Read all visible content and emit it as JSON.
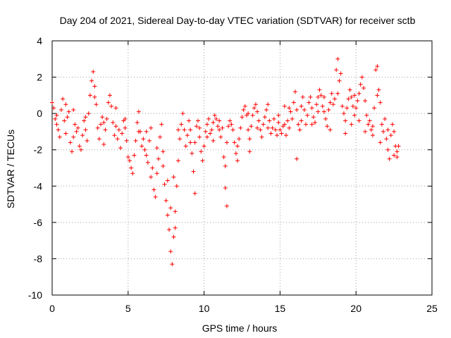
{
  "chart_data": {
    "type": "scatter",
    "title": "Day 204 of 2021, Sidereal Day-to-day VTEC variation (SDTVAR) for receiver sctb",
    "xlabel": "GPS time / hours",
    "ylabel": "SDTVAR / TECUs",
    "xlim": [
      0,
      25
    ],
    "ylim": [
      -10,
      4
    ],
    "xticks": [
      0,
      5,
      10,
      15,
      20,
      25
    ],
    "yticks": [
      -10,
      -8,
      -6,
      -4,
      -2,
      0,
      2,
      4
    ],
    "grid": true,
    "marker": "+",
    "color": "#ff0000",
    "series": [
      {
        "name": "SDTVAR",
        "points": [
          [
            0.0,
            0.6
          ],
          [
            0.1,
            0.3
          ],
          [
            0.2,
            -0.3
          ],
          [
            0.3,
            -0.6
          ],
          [
            0.4,
            -0.9
          ],
          [
            0.5,
            -1.3
          ],
          [
            0.6,
            0.2
          ],
          [
            0.7,
            0.8
          ],
          [
            0.8,
            -0.4
          ],
          [
            0.9,
            -1.1
          ],
          [
            1.0,
            -0.2
          ],
          [
            1.1,
            0.1
          ],
          [
            1.2,
            -1.6
          ],
          [
            1.3,
            -2.1
          ],
          [
            1.4,
            -1.3
          ],
          [
            1.5,
            -0.6
          ],
          [
            1.6,
            -1.0
          ],
          [
            1.7,
            -0.8
          ],
          [
            1.8,
            -1.8
          ],
          [
            1.9,
            -2.0
          ],
          [
            2.0,
            -1.2
          ],
          [
            2.1,
            -0.4
          ],
          [
            2.2,
            -0.9
          ],
          [
            2.3,
            -1.5
          ],
          [
            2.4,
            0.0
          ],
          [
            2.5,
            1.0
          ],
          [
            2.6,
            1.8
          ],
          [
            2.7,
            2.3
          ],
          [
            2.8,
            1.5
          ],
          [
            2.9,
            0.5
          ],
          [
            3.0,
            -0.8
          ],
          [
            3.1,
            -1.4
          ],
          [
            3.2,
            -0.6
          ],
          [
            3.3,
            -0.2
          ],
          [
            3.4,
            -1.7
          ],
          [
            3.5,
            -0.9
          ],
          [
            3.6,
            -0.3
          ],
          [
            3.7,
            0.6
          ],
          [
            3.8,
            1.0
          ],
          [
            3.9,
            0.4
          ],
          [
            4.0,
            -0.5
          ],
          [
            4.1,
            -1.2
          ],
          [
            4.2,
            -0.7
          ],
          [
            4.3,
            -1.4
          ],
          [
            4.4,
            -0.9
          ],
          [
            4.5,
            -1.9
          ],
          [
            4.6,
            -1.1
          ],
          [
            4.7,
            -0.4
          ],
          [
            4.8,
            -0.8
          ],
          [
            4.9,
            -1.5
          ],
          [
            5.0,
            -2.4
          ],
          [
            5.1,
            -2.6
          ],
          [
            5.2,
            -3.0
          ],
          [
            5.3,
            -3.3
          ],
          [
            5.4,
            -2.3
          ],
          [
            5.5,
            -1.5
          ],
          [
            5.6,
            -0.5
          ],
          [
            5.7,
            0.1
          ],
          [
            5.8,
            -1.0
          ],
          [
            5.9,
            -1.8
          ],
          [
            6.0,
            -1.4
          ],
          [
            6.1,
            -2.0
          ],
          [
            6.2,
            -2.3
          ],
          [
            6.3,
            -2.7
          ],
          [
            6.4,
            -1.5
          ],
          [
            6.5,
            -0.8
          ],
          [
            6.6,
            -3.0
          ],
          [
            6.7,
            -4.2
          ],
          [
            6.8,
            -4.6
          ],
          [
            6.9,
            -3.3
          ],
          [
            7.0,
            -2.5
          ],
          [
            7.1,
            -1.3
          ],
          [
            7.2,
            -0.6
          ],
          [
            7.3,
            -2.9
          ],
          [
            7.4,
            -3.9
          ],
          [
            7.5,
            -4.8
          ],
          [
            7.6,
            -5.6
          ],
          [
            7.7,
            -6.4
          ],
          [
            7.8,
            -7.6
          ],
          [
            7.9,
            -8.3
          ],
          [
            8.0,
            -6.8
          ],
          [
            8.1,
            -5.4
          ],
          [
            8.2,
            -4.0
          ],
          [
            8.3,
            -2.6
          ],
          [
            8.4,
            -1.4
          ],
          [
            8.5,
            -0.6
          ],
          [
            8.6,
            0.0
          ],
          [
            8.7,
            -0.9
          ],
          [
            8.8,
            -1.8
          ],
          [
            8.9,
            -1.2
          ],
          [
            9.0,
            -0.4
          ],
          [
            9.1,
            -0.9
          ],
          [
            9.2,
            -2.2
          ],
          [
            9.3,
            -3.2
          ],
          [
            9.4,
            -1.6
          ],
          [
            9.5,
            -0.7
          ],
          [
            9.6,
            -0.4
          ],
          [
            9.7,
            -1.3
          ],
          [
            9.8,
            -2.1
          ],
          [
            9.9,
            -2.6
          ],
          [
            10.0,
            -1.8
          ],
          [
            10.1,
            -1.0
          ],
          [
            10.2,
            -0.6
          ],
          [
            10.3,
            -0.3
          ],
          [
            10.4,
            -1.1
          ],
          [
            10.5,
            -0.9
          ],
          [
            10.6,
            -0.5
          ],
          [
            10.7,
            -0.1
          ],
          [
            10.8,
            -0.3
          ],
          [
            10.9,
            -0.7
          ],
          [
            11.0,
            -0.9
          ],
          [
            11.1,
            -1.3
          ],
          [
            11.2,
            -0.8
          ],
          [
            11.3,
            -2.4
          ],
          [
            11.4,
            -2.9
          ],
          [
            11.5,
            -1.6
          ],
          [
            11.6,
            -0.7
          ],
          [
            11.7,
            -0.4
          ],
          [
            11.8,
            -0.6
          ],
          [
            11.9,
            -0.9
          ],
          [
            12.0,
            -1.6
          ],
          [
            12.1,
            -2.2
          ],
          [
            12.2,
            -2.6
          ],
          [
            12.3,
            -1.4
          ],
          [
            12.4,
            -0.8
          ],
          [
            12.5,
            -0.2
          ],
          [
            12.6,
            0.2
          ],
          [
            12.7,
            0.4
          ],
          [
            12.8,
            -0.1
          ],
          [
            12.9,
            -0.9
          ],
          [
            13.0,
            -1.4
          ],
          [
            13.1,
            -0.7
          ],
          [
            13.2,
            -0.1
          ],
          [
            13.3,
            0.3
          ],
          [
            13.4,
            0.5
          ],
          [
            13.5,
            0.1
          ],
          [
            13.6,
            -0.4
          ],
          [
            13.7,
            -0.9
          ],
          [
            13.8,
            -1.3
          ],
          [
            13.9,
            -0.6
          ],
          [
            14.0,
            -0.2
          ],
          [
            14.1,
            0.2
          ],
          [
            14.2,
            0.5
          ],
          [
            14.3,
            -0.4
          ],
          [
            14.4,
            -1.1
          ],
          [
            14.5,
            -0.8
          ],
          [
            14.6,
            -0.3
          ],
          [
            14.7,
            -0.9
          ],
          [
            14.8,
            -1.2
          ],
          [
            14.9,
            -0.5
          ],
          [
            15.0,
            -0.9
          ],
          [
            15.1,
            -1.1
          ],
          [
            15.2,
            -0.7
          ],
          [
            15.3,
            -0.6
          ],
          [
            15.4,
            -1.2
          ],
          [
            15.5,
            -0.4
          ],
          [
            15.6,
            0.3
          ],
          [
            15.7,
            0.1
          ],
          [
            15.8,
            -0.3
          ],
          [
            15.9,
            0.6
          ],
          [
            16.0,
            1.2
          ],
          [
            16.1,
            0.2
          ],
          [
            16.2,
            -0.6
          ],
          [
            16.3,
            -0.9
          ],
          [
            16.4,
            0.4
          ],
          [
            16.5,
            0.9
          ],
          [
            16.6,
            0.2
          ],
          [
            16.7,
            -0.6
          ],
          [
            16.8,
            -0.1
          ],
          [
            16.9,
            0.6
          ],
          [
            17.0,
            0.9
          ],
          [
            17.1,
            0.3
          ],
          [
            17.2,
            -0.2
          ],
          [
            17.3,
            -0.5
          ],
          [
            17.4,
            0.5
          ],
          [
            17.5,
            0.9
          ],
          [
            17.6,
            1.3
          ],
          [
            17.7,
            1.0
          ],
          [
            17.8,
            0.4
          ],
          [
            17.9,
            0.1
          ],
          [
            18.0,
            -0.3
          ],
          [
            18.1,
            -0.7
          ],
          [
            18.2,
            0.2
          ],
          [
            18.3,
            0.6
          ],
          [
            18.4,
            1.1
          ],
          [
            18.5,
            0.5
          ],
          [
            18.6,
            0.8
          ],
          [
            18.7,
            2.4
          ],
          [
            18.8,
            3.0
          ],
          [
            18.9,
            1.8
          ],
          [
            19.0,
            2.2
          ],
          [
            19.1,
            0.4
          ],
          [
            19.2,
            0.0
          ],
          [
            19.3,
            -0.4
          ],
          [
            19.4,
            0.3
          ],
          [
            19.5,
            0.8
          ],
          [
            19.6,
            1.3
          ],
          [
            19.7,
            0.9
          ],
          [
            19.8,
            0.4
          ],
          [
            19.9,
            -0.1
          ],
          [
            20.0,
            0.3
          ],
          [
            20.1,
            0.7
          ],
          [
            20.2,
            1.1
          ],
          [
            20.3,
            1.6
          ],
          [
            20.4,
            2.0
          ],
          [
            20.5,
            1.4
          ],
          [
            20.6,
            0.7
          ],
          [
            20.7,
            -0.1
          ],
          [
            20.8,
            -0.6
          ],
          [
            20.9,
            -0.4
          ],
          [
            21.0,
            -0.9
          ],
          [
            21.1,
            -0.7
          ],
          [
            21.2,
            0.3
          ],
          [
            21.3,
            2.4
          ],
          [
            21.4,
            2.6
          ],
          [
            21.5,
            1.3
          ],
          [
            21.6,
            0.6
          ],
          [
            21.7,
            -0.6
          ],
          [
            21.8,
            -1.0
          ],
          [
            21.9,
            -0.3
          ],
          [
            22.0,
            -1.4
          ],
          [
            22.1,
            -2.0
          ],
          [
            22.2,
            -2.5
          ],
          [
            22.3,
            -1.2
          ],
          [
            22.4,
            -0.6
          ],
          [
            22.5,
            -1.0
          ],
          [
            22.6,
            -1.8
          ],
          [
            22.7,
            -2.1
          ],
          [
            22.8,
            -1.8
          ],
          [
            0.3,
            -0.1
          ],
          [
            0.9,
            0.5
          ],
          [
            1.4,
            0.2
          ],
          [
            2.2,
            -0.2
          ],
          [
            2.8,
            0.9
          ],
          [
            3.4,
            -0.5
          ],
          [
            4.2,
            0.3
          ],
          [
            4.8,
            -0.3
          ],
          [
            5.7,
            -1.0
          ],
          [
            6.2,
            -1.0
          ],
          [
            6.9,
            -1.9
          ],
          [
            7.6,
            -3.7
          ],
          [
            7.8,
            -5.2
          ],
          [
            8.0,
            -3.5
          ],
          [
            8.3,
            -0.9
          ],
          [
            9.1,
            -1.6
          ],
          [
            9.7,
            -0.8
          ],
          [
            10.2,
            -1.3
          ],
          [
            11.0,
            -0.4
          ],
          [
            11.4,
            -4.1
          ],
          [
            11.5,
            -5.1
          ],
          [
            12.2,
            -1.8
          ],
          [
            12.9,
            0.0
          ],
          [
            13.5,
            -0.8
          ],
          [
            14.2,
            -0.8
          ],
          [
            14.9,
            -0.1
          ],
          [
            15.6,
            -0.8
          ],
          [
            16.1,
            -2.5
          ],
          [
            16.4,
            -0.4
          ],
          [
            17.1,
            -0.6
          ],
          [
            17.9,
            0.9
          ],
          [
            18.3,
            -0.9
          ],
          [
            18.8,
            1.1
          ],
          [
            19.3,
            -1.1
          ],
          [
            19.7,
            -0.6
          ],
          [
            20.2,
            -0.4
          ],
          [
            20.6,
            -1.0
          ],
          [
            21.1,
            -1.2
          ],
          [
            21.6,
            -1.6
          ],
          [
            22.1,
            -0.9
          ],
          [
            22.5,
            -2.3
          ],
          [
            6.5,
            -3.5
          ],
          [
            7.3,
            -2.1
          ],
          [
            8.1,
            -6.3
          ],
          [
            9.4,
            -4.4
          ],
          [
            10.6,
            -1.5
          ],
          [
            13.0,
            -2.1
          ],
          [
            15.3,
            0.4
          ],
          [
            17.5,
            0.1
          ],
          [
            19.9,
            1.0
          ],
          [
            21.4,
            1.0
          ],
          [
            22.7,
            -2.4
          ]
        ]
      }
    ]
  }
}
